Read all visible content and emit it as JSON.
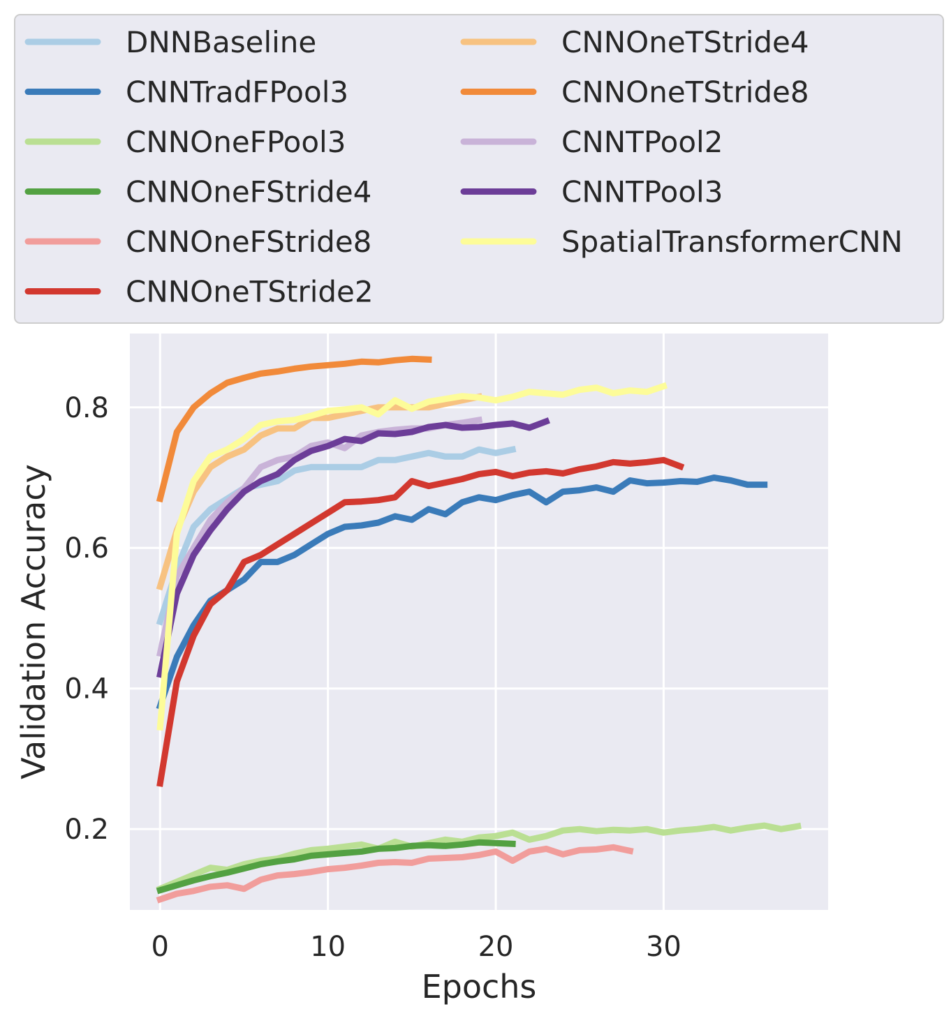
{
  "chart_data": {
    "type": "line",
    "xlabel": "Epochs",
    "ylabel": "Validation Accuracy",
    "xlim": [
      -1.8,
      39.8
    ],
    "ylim": [
      0.085,
      0.905
    ],
    "xticks": [
      0,
      10,
      20,
      30
    ],
    "xtick_labels": [
      "0",
      "10",
      "20",
      "30"
    ],
    "yticks": [
      0.2,
      0.4,
      0.6,
      0.8
    ],
    "ytick_labels": [
      "0.2",
      "0.4",
      "0.6",
      "0.8"
    ],
    "grid": true,
    "legend_position": "top",
    "legend_columns": 2,
    "series": [
      {
        "name": "DNNBaseline",
        "color": "#abcde5",
        "values": [
          0.495,
          0.57,
          0.63,
          0.655,
          0.67,
          0.685,
          0.69,
          0.695,
          0.71,
          0.715,
          0.715,
          0.715,
          0.715,
          0.725,
          0.725,
          0.73,
          0.735,
          0.73,
          0.73,
          0.74,
          0.735,
          0.74
        ]
      },
      {
        "name": "CNNTradFPool3",
        "color": "#3a7bb9",
        "values": [
          0.375,
          0.445,
          0.49,
          0.525,
          0.54,
          0.555,
          0.58,
          0.58,
          0.59,
          0.605,
          0.62,
          0.63,
          0.632,
          0.636,
          0.645,
          0.64,
          0.655,
          0.648,
          0.665,
          0.672,
          0.668,
          0.675,
          0.68,
          0.665,
          0.68,
          0.682,
          0.686,
          0.68,
          0.696,
          0.692,
          0.693,
          0.695,
          0.694,
          0.7,
          0.696,
          0.69,
          0.69
        ]
      },
      {
        "name": "CNNOneFPool3",
        "color": "#badf93",
        "values": [
          0.115,
          0.125,
          0.135,
          0.145,
          0.142,
          0.15,
          0.155,
          0.158,
          0.165,
          0.17,
          0.172,
          0.175,
          0.178,
          0.172,
          0.182,
          0.175,
          0.18,
          0.185,
          0.182,
          0.188,
          0.19,
          0.195,
          0.185,
          0.19,
          0.198,
          0.2,
          0.197,
          0.199,
          0.198,
          0.2,
          0.195,
          0.198,
          0.2,
          0.203,
          0.198,
          0.202,
          0.205,
          0.2,
          0.204
        ]
      },
      {
        "name": "CNNOneFStride4",
        "color": "#53a142",
        "values": [
          0.113,
          0.12,
          0.127,
          0.133,
          0.138,
          0.144,
          0.15,
          0.154,
          0.157,
          0.162,
          0.164,
          0.166,
          0.168,
          0.172,
          0.173,
          0.176,
          0.177,
          0.176,
          0.178,
          0.181,
          0.18,
          0.179
        ]
      },
      {
        "name": "CNNOneFStride8",
        "color": "#f19d9b",
        "values": [
          0.1,
          0.108,
          0.112,
          0.118,
          0.12,
          0.115,
          0.128,
          0.134,
          0.136,
          0.139,
          0.143,
          0.145,
          0.148,
          0.152,
          0.153,
          0.152,
          0.158,
          0.159,
          0.16,
          0.163,
          0.168,
          0.155,
          0.168,
          0.172,
          0.164,
          0.17,
          0.171,
          0.174,
          0.169
        ]
      },
      {
        "name": "CNNOneTStride2",
        "color": "#d2382f",
        "values": [
          0.265,
          0.41,
          0.475,
          0.52,
          0.54,
          0.58,
          0.59,
          0.605,
          0.62,
          0.635,
          0.65,
          0.665,
          0.666,
          0.668,
          0.672,
          0.695,
          0.688,
          0.693,
          0.698,
          0.705,
          0.708,
          0.702,
          0.707,
          0.709,
          0.706,
          0.712,
          0.716,
          0.722,
          0.72,
          0.722,
          0.725,
          0.716
        ]
      },
      {
        "name": "CNNOneTStride4",
        "color": "#f7c281",
        "values": [
          0.545,
          0.625,
          0.68,
          0.715,
          0.73,
          0.74,
          0.76,
          0.77,
          0.77,
          0.785,
          0.785,
          0.79,
          0.795,
          0.8,
          0.8,
          0.8,
          0.8,
          0.805,
          0.81,
          0.815
        ]
      },
      {
        "name": "CNNOneTStride8",
        "color": "#f18a3a",
        "values": [
          0.67,
          0.765,
          0.8,
          0.82,
          0.835,
          0.842,
          0.848,
          0.851,
          0.855,
          0.858,
          0.86,
          0.862,
          0.865,
          0.864,
          0.867,
          0.869,
          0.868
        ]
      },
      {
        "name": "CNNTPool2",
        "color": "#c9b3d8",
        "values": [
          0.45,
          0.56,
          0.6,
          0.64,
          0.665,
          0.685,
          0.715,
          0.725,
          0.73,
          0.745,
          0.75,
          0.742,
          0.76,
          0.765,
          0.768,
          0.77,
          0.77,
          0.775,
          0.778,
          0.782
        ]
      },
      {
        "name": "CNNTPool3",
        "color": "#6c3d98",
        "values": [
          0.42,
          0.535,
          0.59,
          0.625,
          0.655,
          0.68,
          0.695,
          0.705,
          0.725,
          0.738,
          0.745,
          0.755,
          0.752,
          0.763,
          0.762,
          0.765,
          0.772,
          0.775,
          0.771,
          0.772,
          0.775,
          0.777,
          0.771,
          0.78
        ]
      },
      {
        "name": "SpatialTransformerCNN",
        "color": "#fdfc99",
        "values": [
          0.345,
          0.62,
          0.695,
          0.73,
          0.74,
          0.755,
          0.775,
          0.78,
          0.782,
          0.788,
          0.795,
          0.797,
          0.8,
          0.79,
          0.81,
          0.798,
          0.808,
          0.812,
          0.816,
          0.814,
          0.81,
          0.815,
          0.822,
          0.82,
          0.818,
          0.825,
          0.828,
          0.82,
          0.824,
          0.822,
          0.83
        ]
      }
    ]
  }
}
